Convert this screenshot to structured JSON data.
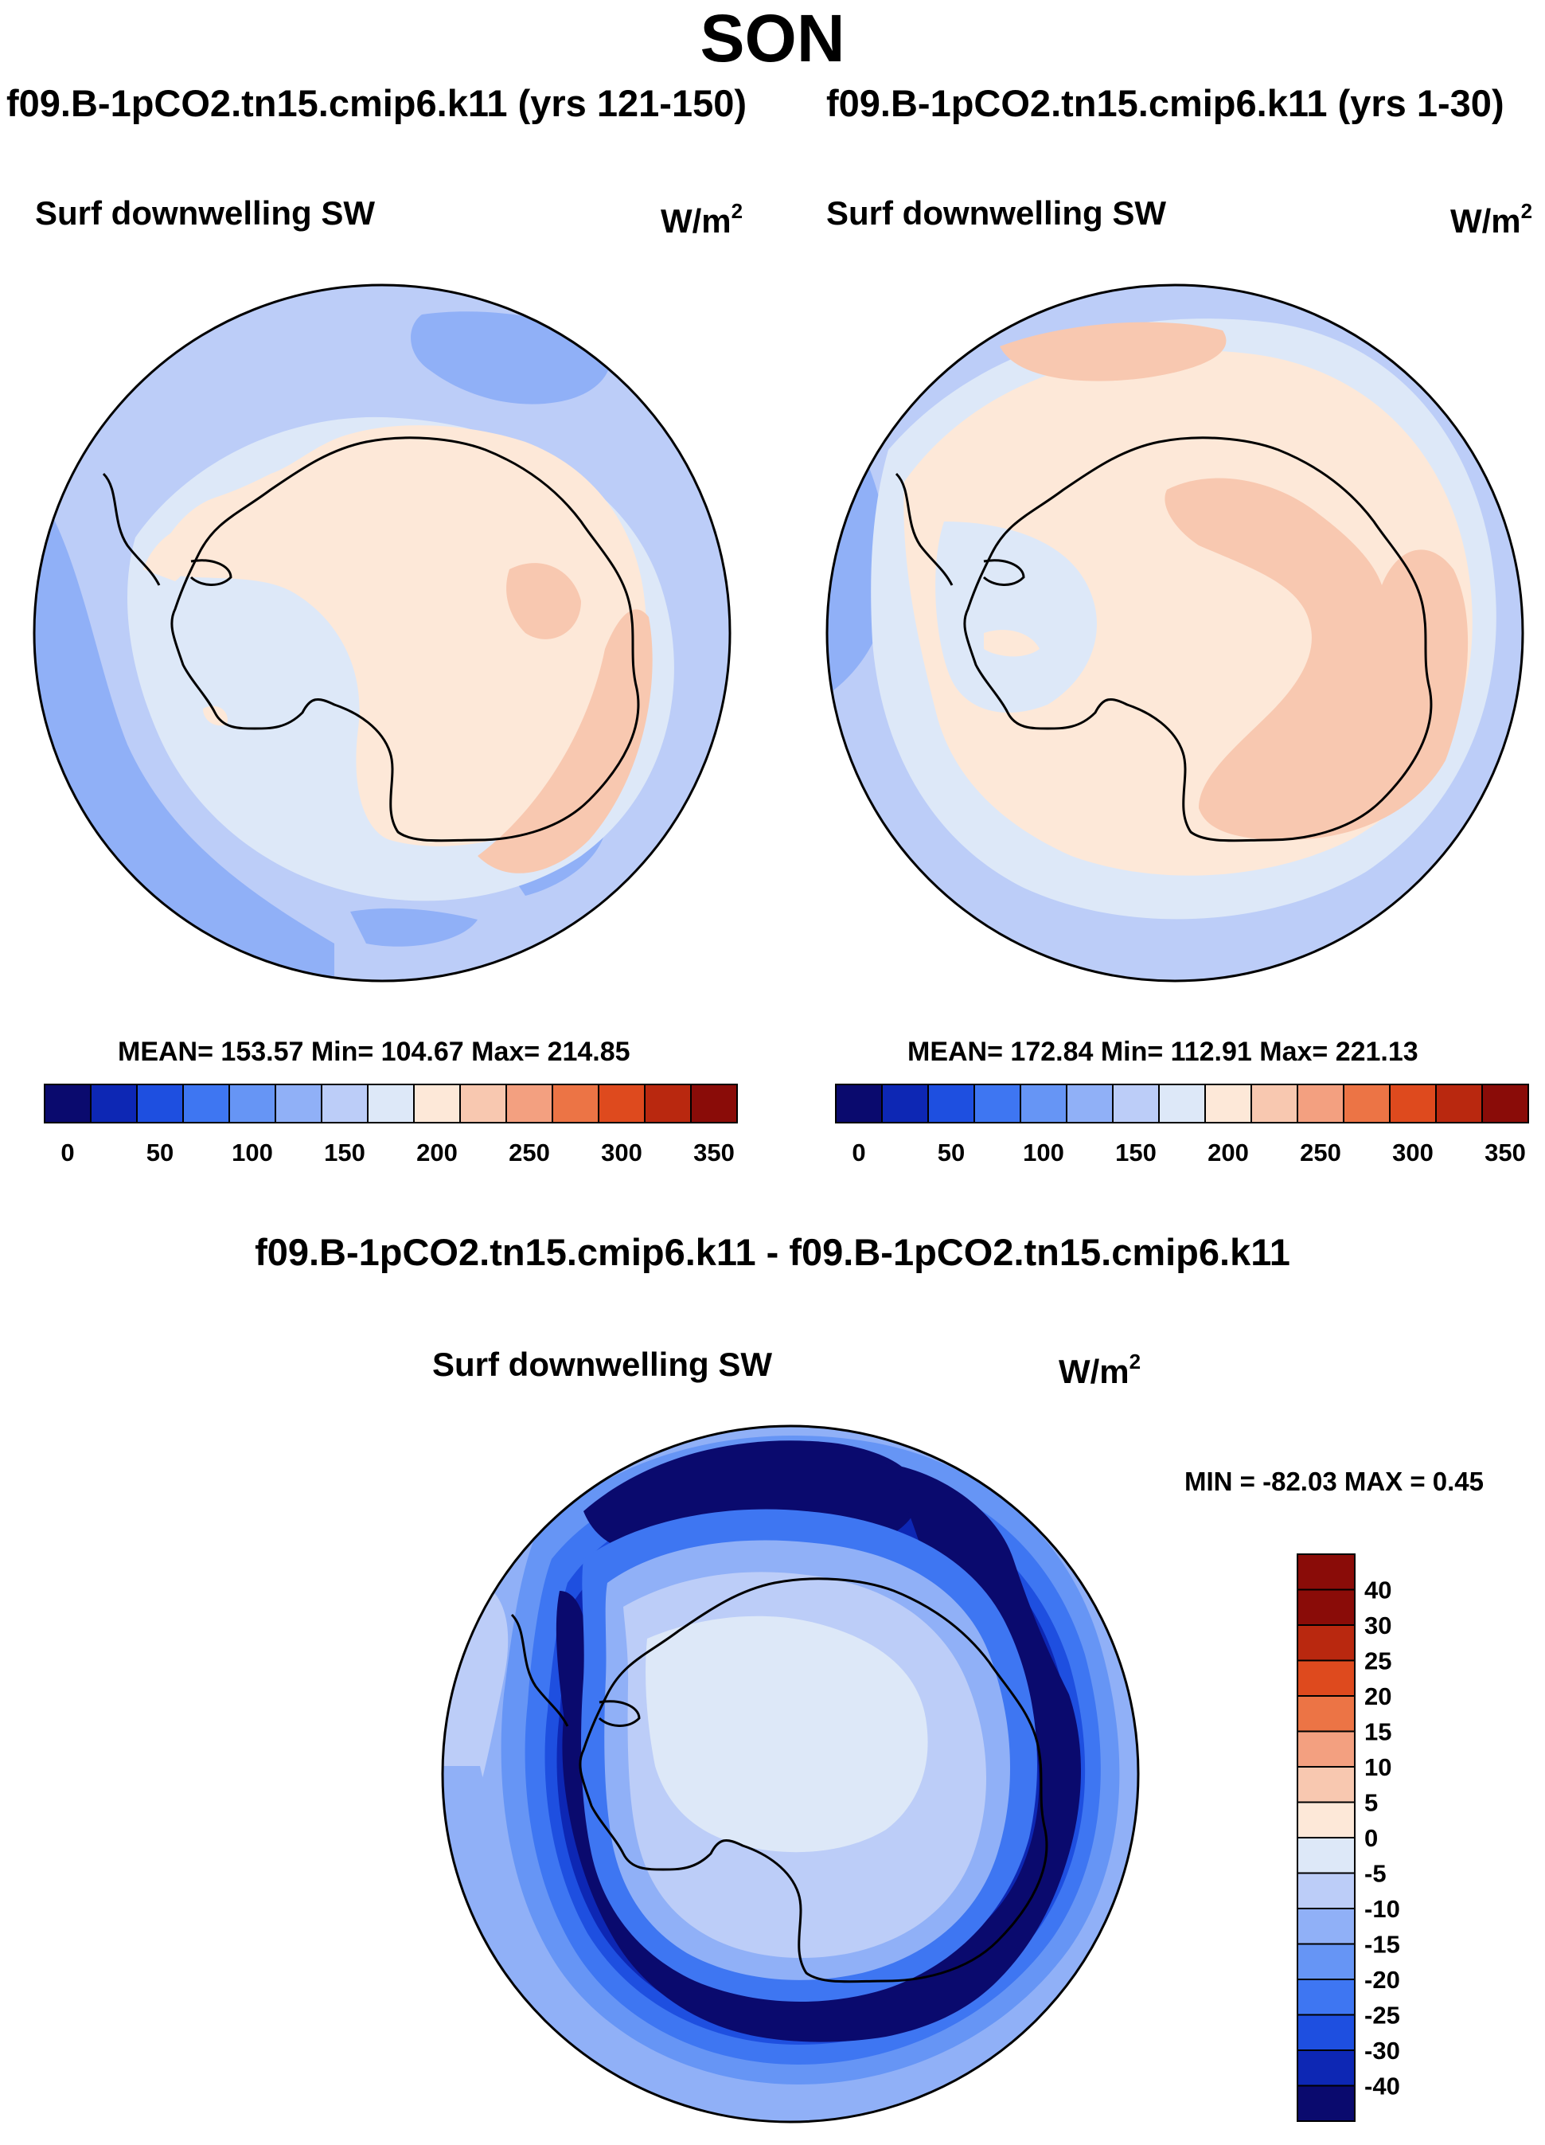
{
  "season": "SON",
  "top_panels": {
    "left_title": "f09.B-1pCO2.tn15.cmip6.k11 (yrs 121-150)",
    "right_title": "f09.B-1pCO2.tn15.cmip6.k11 (yrs 1-30)",
    "var_label": "Surf downwelling SW",
    "units_base": "W/m",
    "units_exp": "2",
    "left_stats": "MEAN= 153.57  Min= 104.67  Max= 214.85",
    "right_stats": "MEAN= 172.84  Min= 112.91  Max= 221.13"
  },
  "diff_panel": {
    "title": "f09.B-1pCO2.tn15.cmip6.k11 - f09.B-1pCO2.tn15.cmip6.k11",
    "var_label": "Surf downwelling SW",
    "units_base": "W/m",
    "units_exp": "2",
    "minmax": "MIN = -82.03 MAX =   0.45"
  },
  "colors": {
    "abs_scale": [
      "#0a0a6e",
      "#0d27b4",
      "#1e4fe0",
      "#3e76f2",
      "#6695f5",
      "#90b0f7",
      "#bccdf8",
      "#dde8f8",
      "#fde8d8",
      "#f8c8b0",
      "#f3a080",
      "#ec7445",
      "#de4a1e",
      "#b9280f",
      "#8a0c08"
    ],
    "diff_scale": [
      "#0a0a6e",
      "#0d27b4",
      "#1e4fe0",
      "#3e76f2",
      "#6695f5",
      "#90b0f7",
      "#bccdf8",
      "#dde8f8",
      "#fde8d8",
      "#f8c8b0",
      "#f3a080",
      "#ec7445",
      "#de4a1e",
      "#b9280f",
      "#8a0c08"
    ]
  },
  "chart_data": [
    {
      "type": "heatmap",
      "projection": "south polar stereographic",
      "title": "f09.B-1pCO2.tn15.cmip6.k11 (yrs 121-150)",
      "variable": "Surf downwelling SW",
      "units": "W/m^2",
      "mean": 153.57,
      "min": 104.67,
      "max": 214.85,
      "colorbar_levels": [
        0,
        25,
        50,
        75,
        100,
        125,
        150,
        175,
        200,
        225,
        250,
        275,
        300,
        325,
        350
      ],
      "colorbar_tick_labels": [
        "0",
        "50",
        "100",
        "150",
        "200",
        "250",
        "300",
        "350"
      ]
    },
    {
      "type": "heatmap",
      "projection": "south polar stereographic",
      "title": "f09.B-1pCO2.tn15.cmip6.k11 (yrs 1-30)",
      "variable": "Surf downwelling SW",
      "units": "W/m^2",
      "mean": 172.84,
      "min": 112.91,
      "max": 221.13,
      "colorbar_levels": [
        0,
        25,
        50,
        75,
        100,
        125,
        150,
        175,
        200,
        225,
        250,
        275,
        300,
        325,
        350
      ],
      "colorbar_tick_labels": [
        "0",
        "50",
        "100",
        "150",
        "200",
        "250",
        "300",
        "350"
      ]
    },
    {
      "type": "heatmap",
      "projection": "south polar stereographic",
      "title": "f09.B-1pCO2.tn15.cmip6.k11 - f09.B-1pCO2.tn15.cmip6.k11",
      "variable": "Surf downwelling SW",
      "units": "W/m^2",
      "min": -82.03,
      "max": 0.45,
      "colorbar_levels": [
        -40,
        -30,
        -25,
        -20,
        -15,
        -10,
        -5,
        0,
        5,
        10,
        15,
        20,
        25,
        30,
        40
      ],
      "colorbar_tick_labels": [
        "40",
        "30",
        "25",
        "20",
        "15",
        "10",
        "5",
        "0",
        "-5",
        "-10",
        "-15",
        "-20",
        "-25",
        "-30",
        "-40"
      ]
    }
  ]
}
